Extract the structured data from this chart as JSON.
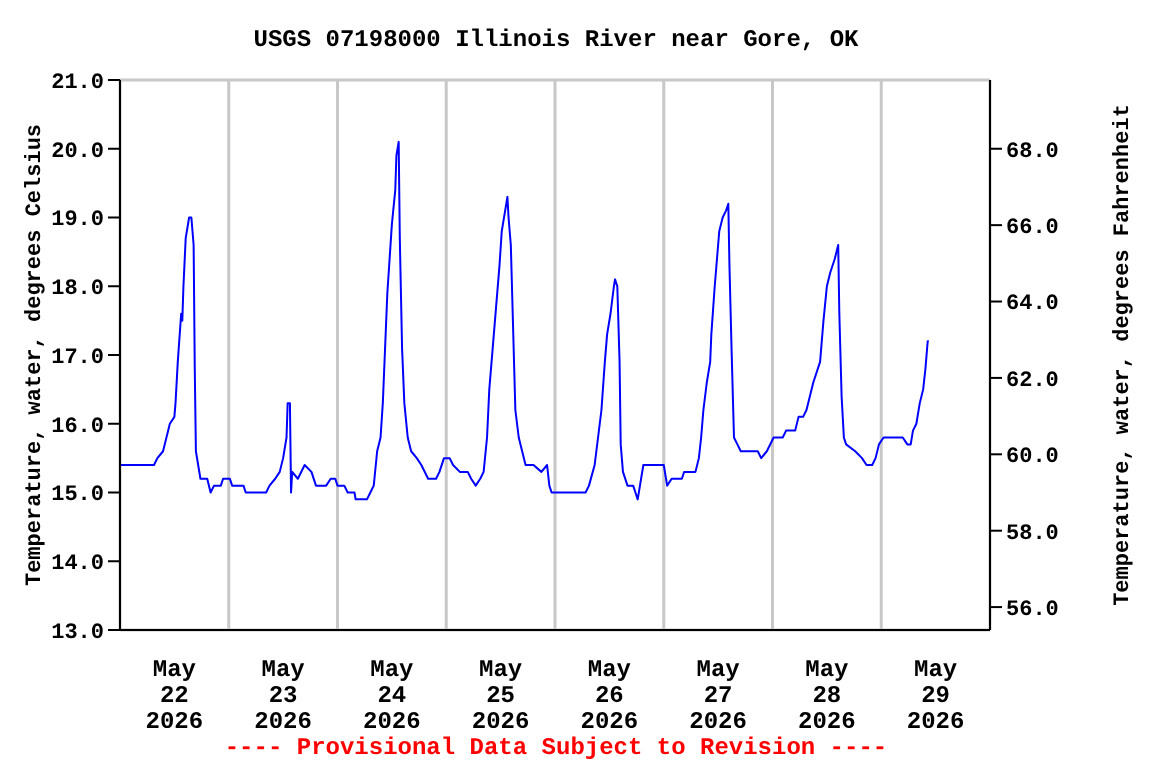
{
  "chart_data": {
    "type": "line",
    "title": "USGS 07198000 Illinois River near Gore, OK",
    "ylabel": "Temperature, water, degrees Celsius",
    "y2label": "Temperature, water, degrees Fahrenheit",
    "annotations": [
      "---- Provisional Data Subject to Revision ----"
    ],
    "xlim": [
      "2026-05-22T00:00",
      "2026-05-30T00:00"
    ],
    "xticks": [
      {
        "value": "2026-05-22T00:00",
        "label": null
      },
      {
        "value": "2026-05-22T12:00",
        "label": "May\n22\n2026"
      },
      {
        "value": "2026-05-23T00:00",
        "label": null
      },
      {
        "value": "2026-05-23T12:00",
        "label": "May\n23\n2026"
      },
      {
        "value": "2026-05-24T00:00",
        "label": null
      },
      {
        "value": "2026-05-24T12:00",
        "label": "May\n24\n2026"
      },
      {
        "value": "2026-05-25T00:00",
        "label": null
      },
      {
        "value": "2026-05-25T12:00",
        "label": "May\n25\n2026"
      },
      {
        "value": "2026-05-26T00:00",
        "label": null
      },
      {
        "value": "2026-05-26T12:00",
        "label": "May\n26\n2026"
      },
      {
        "value": "2026-05-27T00:00",
        "label": null
      },
      {
        "value": "2026-05-27T12:00",
        "label": "May\n27\n2026"
      },
      {
        "value": "2026-05-28T00:00",
        "label": null
      },
      {
        "value": "2026-05-28T12:00",
        "label": "May\n28\n2026"
      },
      {
        "value": "2026-05-29T00:00",
        "label": null
      },
      {
        "value": "2026-05-29T12:00",
        "label": "May\n29\n2026"
      },
      {
        "value": "2026-05-30T00:00",
        "label": null
      }
    ],
    "ylim": [
      13,
      21
    ],
    "yticks": [
      {
        "value": 13,
        "label": "13.0"
      },
      {
        "value": 14,
        "label": "14.0"
      },
      {
        "value": 15,
        "label": "15.0"
      },
      {
        "value": 16,
        "label": "16.0"
      },
      {
        "value": 17,
        "label": "17.0"
      },
      {
        "value": 18,
        "label": "18.0"
      },
      {
        "value": 19,
        "label": "19.0"
      },
      {
        "value": 20,
        "label": "20.0"
      },
      {
        "value": 21,
        "label": "21.0"
      }
    ],
    "y2lim": [
      55.4,
      69.8
    ],
    "y2ticks": [
      {
        "value": 56,
        "label": "56.0"
      },
      {
        "value": 58,
        "label": "58.0"
      },
      {
        "value": 60,
        "label": "60.0"
      },
      {
        "value": 62,
        "label": "62.0"
      },
      {
        "value": 64,
        "label": "64.0"
      },
      {
        "value": 66,
        "label": "66.0"
      },
      {
        "value": 68,
        "label": "68.0"
      }
    ],
    "grid": true,
    "legend": false,
    "marker": "none",
    "line_style": "solid",
    "series": [
      {
        "color": "#0000ff",
        "x": [
          "2026-05-22T00:00",
          "2026-05-22T07:30",
          "2026-05-22T08:15",
          "2026-05-22T09:30",
          "2026-05-22T10:15",
          "2026-05-22T11:00",
          "2026-05-22T12:00",
          "2026-05-22T12:15",
          "2026-05-22T12:45",
          "2026-05-22T13:30",
          "2026-05-22T13:45",
          "2026-05-22T14:00",
          "2026-05-22T14:30",
          "2026-05-22T15:15",
          "2026-05-22T15:45",
          "2026-05-22T16:15",
          "2026-05-22T16:30",
          "2026-05-22T16:45",
          "2026-05-22T17:15",
          "2026-05-22T17:45",
          "2026-05-22T19:15",
          "2026-05-22T20:00",
          "2026-05-22T20:45",
          "2026-05-22T22:15",
          "2026-05-22T22:45",
          "2026-05-23T00:15",
          "2026-05-23T00:45",
          "2026-05-23T03:15",
          "2026-05-23T03:45",
          "2026-05-23T08:15",
          "2026-05-23T09:00",
          "2026-05-23T10:15",
          "2026-05-23T11:15",
          "2026-05-23T12:00",
          "2026-05-23T12:45",
          "2026-05-23T13:00",
          "2026-05-23T13:30",
          "2026-05-23T13:45",
          "2026-05-23T14:00",
          "2026-05-23T15:15",
          "2026-05-23T16:45",
          "2026-05-23T18:15",
          "2026-05-23T19:15",
          "2026-05-23T21:30",
          "2026-05-23T22:30",
          "2026-05-23T23:30",
          "2026-05-24T00:00",
          "2026-05-24T01:30",
          "2026-05-24T02:15",
          "2026-05-24T03:45",
          "2026-05-24T04:00",
          "2026-05-24T06:30",
          "2026-05-24T07:15",
          "2026-05-24T08:00",
          "2026-05-24T08:45",
          "2026-05-24T09:30",
          "2026-05-24T10:00",
          "2026-05-24T10:30",
          "2026-05-24T11:00",
          "2026-05-24T12:00",
          "2026-05-24T12:45",
          "2026-05-24T13:00",
          "2026-05-24T13:30",
          "2026-05-24T13:45",
          "2026-05-24T14:15",
          "2026-05-24T14:45",
          "2026-05-24T15:30",
          "2026-05-24T16:15",
          "2026-05-24T17:30",
          "2026-05-24T18:30",
          "2026-05-24T20:00",
          "2026-05-24T21:45",
          "2026-05-24T22:30",
          "2026-05-24T23:30",
          "2026-05-25T00:45",
          "2026-05-25T01:30",
          "2026-05-25T03:00",
          "2026-05-25T04:45",
          "2026-05-25T05:30",
          "2026-05-25T06:30",
          "2026-05-25T07:30",
          "2026-05-25T08:15",
          "2026-05-25T09:00",
          "2026-05-25T09:30",
          "2026-05-25T10:15",
          "2026-05-25T11:00",
          "2026-05-25T11:45",
          "2026-05-25T12:15",
          "2026-05-25T13:00",
          "2026-05-25T13:30",
          "2026-05-25T13:45",
          "2026-05-25T14:15",
          "2026-05-25T14:45",
          "2026-05-25T15:15",
          "2026-05-25T16:00",
          "2026-05-25T16:45",
          "2026-05-25T17:30",
          "2026-05-25T19:15",
          "2026-05-25T21:00",
          "2026-05-25T22:15",
          "2026-05-25T22:45",
          "2026-05-25T23:15",
          "2026-05-26T06:45",
          "2026-05-26T07:30",
          "2026-05-26T08:45",
          "2026-05-26T09:30",
          "2026-05-26T10:15",
          "2026-05-26T11:00",
          "2026-05-26T11:30",
          "2026-05-26T12:15",
          "2026-05-26T13:00",
          "2026-05-26T13:15",
          "2026-05-26T13:45",
          "2026-05-26T14:15",
          "2026-05-26T14:30",
          "2026-05-26T15:00",
          "2026-05-26T16:00",
          "2026-05-26T17:15",
          "2026-05-26T17:45",
          "2026-05-26T18:15",
          "2026-05-26T18:45",
          "2026-05-26T19:30",
          "2026-05-27T00:00",
          "2026-05-27T00:45",
          "2026-05-27T01:45",
          "2026-05-27T04:00",
          "2026-05-27T04:30",
          "2026-05-27T07:00",
          "2026-05-27T07:45",
          "2026-05-27T08:15",
          "2026-05-27T08:45",
          "2026-05-27T09:30",
          "2026-05-27T10:15",
          "2026-05-27T10:30",
          "2026-05-27T11:15",
          "2026-05-27T11:45",
          "2026-05-27T12:15",
          "2026-05-27T13:00",
          "2026-05-27T13:45",
          "2026-05-27T14:15",
          "2026-05-27T14:30",
          "2026-05-27T15:00",
          "2026-05-27T15:30",
          "2026-05-27T16:15",
          "2026-05-27T17:00",
          "2026-05-27T20:45",
          "2026-05-27T21:30",
          "2026-05-27T22:45",
          "2026-05-28T00:15",
          "2026-05-28T02:15",
          "2026-05-28T03:00",
          "2026-05-28T05:00",
          "2026-05-28T05:45",
          "2026-05-28T06:45",
          "2026-05-28T07:30",
          "2026-05-28T08:15",
          "2026-05-28T09:00",
          "2026-05-28T10:30",
          "2026-05-28T11:15",
          "2026-05-28T12:00",
          "2026-05-28T12:45",
          "2026-05-28T13:45",
          "2026-05-28T14:30",
          "2026-05-28T14:45",
          "2026-05-28T15:15",
          "2026-05-28T15:45",
          "2026-05-28T16:15",
          "2026-05-28T18:15",
          "2026-05-28T19:45",
          "2026-05-28T20:45",
          "2026-05-28T22:00",
          "2026-05-28T22:45",
          "2026-05-28T23:30",
          "2026-05-29T00:30",
          "2026-05-29T04:45",
          "2026-05-29T05:45",
          "2026-05-29T06:30",
          "2026-05-29T07:00",
          "2026-05-29T07:45",
          "2026-05-29T08:30",
          "2026-05-29T09:15",
          "2026-05-29T09:45",
          "2026-05-29T10:15",
          "2026-05-29T10:30"
        ],
        "values": [
          15.4,
          15.4,
          15.5,
          15.6,
          15.8,
          16.0,
          16.1,
          16.3,
          16.9,
          17.6,
          17.5,
          18.0,
          18.7,
          19.0,
          19.0,
          18.6,
          16.8,
          15.6,
          15.4,
          15.2,
          15.2,
          15.0,
          15.1,
          15.1,
          15.2,
          15.2,
          15.1,
          15.1,
          15.0,
          15.0,
          15.1,
          15.2,
          15.3,
          15.5,
          15.8,
          16.3,
          16.3,
          15.0,
          15.3,
          15.2,
          15.4,
          15.3,
          15.1,
          15.1,
          15.2,
          15.2,
          15.1,
          15.1,
          15.0,
          15.0,
          14.9,
          14.9,
          15.0,
          15.1,
          15.6,
          15.8,
          16.3,
          17.1,
          17.9,
          18.9,
          19.4,
          19.9,
          20.1,
          18.7,
          17.1,
          16.3,
          15.8,
          15.6,
          15.5,
          15.4,
          15.2,
          15.2,
          15.3,
          15.5,
          15.5,
          15.4,
          15.3,
          15.3,
          15.2,
          15.1,
          15.2,
          15.3,
          15.8,
          16.5,
          17.1,
          17.7,
          18.3,
          18.8,
          19.1,
          19.3,
          19.0,
          18.6,
          17.4,
          16.2,
          15.8,
          15.6,
          15.4,
          15.4,
          15.3,
          15.4,
          15.1,
          15.0,
          15.0,
          15.1,
          15.4,
          15.8,
          16.2,
          16.9,
          17.3,
          17.6,
          18.0,
          18.1,
          18.0,
          16.9,
          15.7,
          15.3,
          15.1,
          15.1,
          15.0,
          14.9,
          15.1,
          15.4,
          15.4,
          15.1,
          15.2,
          15.2,
          15.3,
          15.3,
          15.5,
          15.8,
          16.2,
          16.6,
          16.9,
          17.3,
          18.0,
          18.4,
          18.8,
          19.0,
          19.1,
          19.2,
          18.3,
          17.0,
          15.8,
          15.7,
          15.6,
          15.6,
          15.5,
          15.6,
          15.8,
          15.8,
          15.9,
          15.9,
          16.1,
          16.1,
          16.2,
          16.4,
          16.6,
          16.9,
          17.5,
          18.0,
          18.2,
          18.4,
          18.6,
          17.6,
          16.4,
          15.8,
          15.7,
          15.6,
          15.5,
          15.4,
          15.4,
          15.5,
          15.7,
          15.8,
          15.8,
          15.7,
          15.7,
          15.9,
          16.0,
          16.3,
          16.5,
          16.8,
          17.2,
          17.2
        ]
      }
    ]
  }
}
